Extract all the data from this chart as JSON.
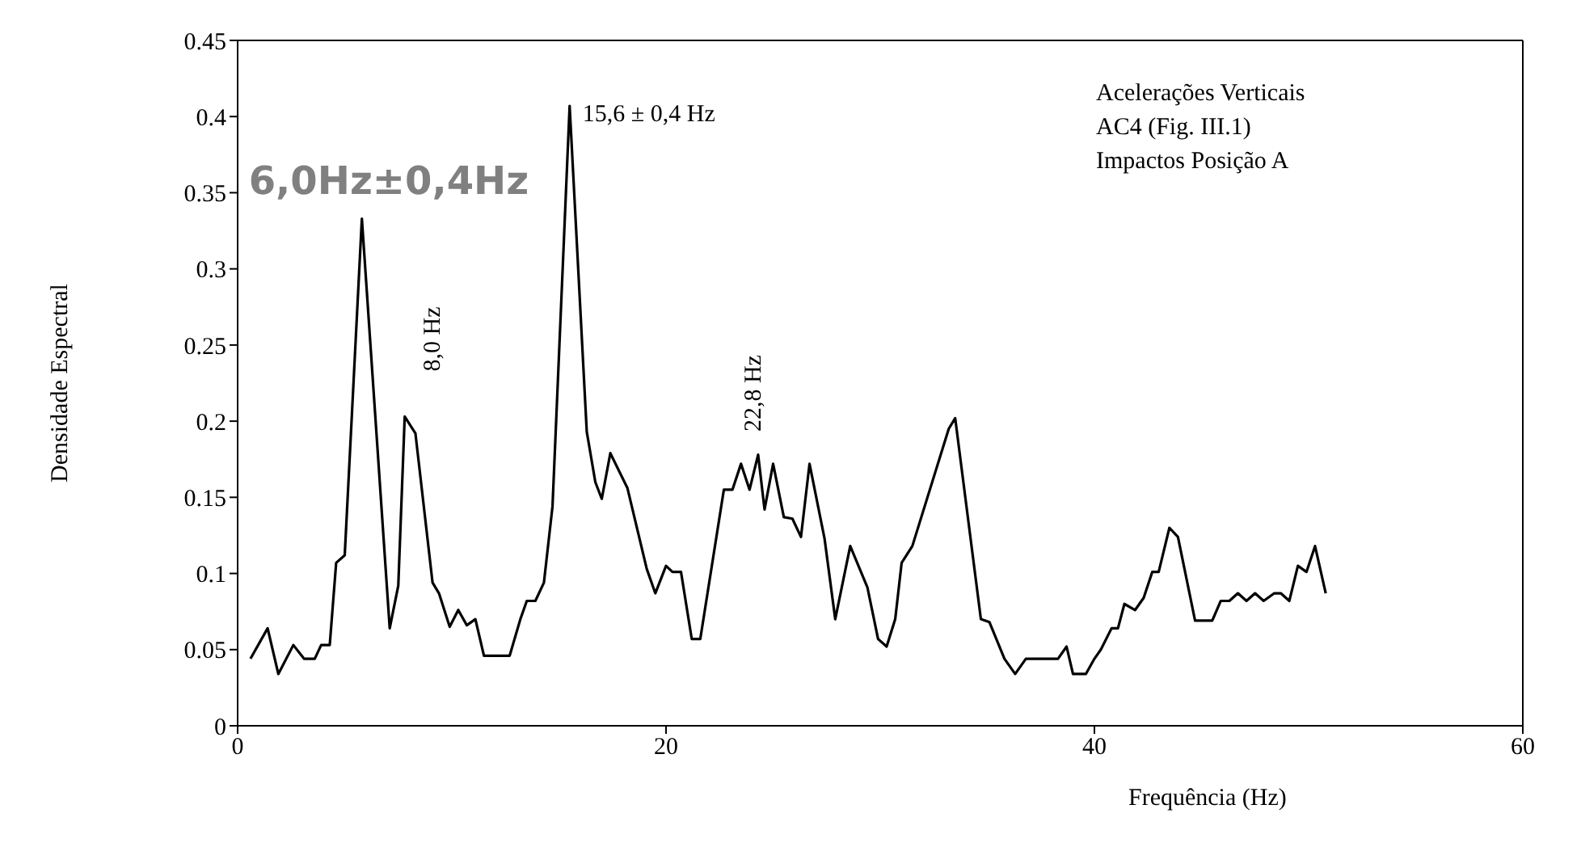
{
  "chart_data": {
    "type": "line",
    "xlabel": "Frequência (Hz)",
    "ylabel": "Densidade Espectral",
    "xlim": [
      0,
      60
    ],
    "xticks": [
      0,
      20,
      40,
      60
    ],
    "ylim": [
      0,
      0.45
    ],
    "yticks": [
      0,
      0.05,
      0.1,
      0.15,
      0.2,
      0.25,
      0.3,
      0.35,
      0.4,
      0.45
    ],
    "marker": "none",
    "line_style": "solid",
    "series": [
      {
        "color": "#000000",
        "x": [
          0.6,
          1.4,
          1.9,
          2.6,
          3.1,
          3.6,
          3.9,
          4.3,
          4.6,
          5.0,
          5.8,
          7.1,
          7.5,
          7.8,
          8.3,
          9.1,
          9.4,
          9.9,
          10.3,
          10.7,
          11.1,
          11.5,
          12.7,
          13.2,
          13.5,
          13.9,
          14.3,
          14.7,
          15.5,
          16.3,
          16.7,
          17.0,
          17.4,
          18.2,
          19.1,
          19.5,
          20.0,
          20.3,
          20.7,
          21.2,
          21.6,
          22.7,
          23.1,
          23.5,
          23.9,
          24.3,
          24.6,
          25.0,
          25.5,
          25.9,
          26.3,
          26.7,
          27.4,
          27.9,
          28.6,
          29.4,
          29.9,
          30.3,
          30.7,
          31.0,
          31.5,
          33.2,
          33.5,
          34.7,
          35.1,
          35.8,
          36.3,
          36.8,
          38.3,
          38.7,
          39.0,
          39.6,
          40.0,
          40.3,
          40.8,
          41.1,
          41.4,
          41.9,
          42.3,
          42.7,
          43.0,
          43.5,
          43.9,
          44.7,
          45.5,
          45.9,
          46.3,
          46.7,
          47.1,
          47.5,
          47.9,
          48.4,
          48.7,
          49.1,
          49.5,
          49.9,
          50.3,
          50.8
        ],
        "values": [
          0.044,
          0.064,
          0.034,
          0.053,
          0.044,
          0.044,
          0.053,
          0.053,
          0.107,
          0.112,
          0.333,
          0.064,
          0.092,
          0.203,
          0.192,
          0.094,
          0.087,
          0.065,
          0.076,
          0.066,
          0.07,
          0.046,
          0.046,
          0.07,
          0.082,
          0.082,
          0.094,
          0.144,
          0.407,
          0.193,
          0.16,
          0.149,
          0.179,
          0.156,
          0.103,
          0.087,
          0.105,
          0.101,
          0.101,
          0.057,
          0.057,
          0.155,
          0.155,
          0.172,
          0.155,
          0.178,
          0.142,
          0.172,
          0.137,
          0.136,
          0.124,
          0.172,
          0.123,
          0.07,
          0.118,
          0.091,
          0.057,
          0.052,
          0.07,
          0.107,
          0.118,
          0.195,
          0.202,
          0.07,
          0.068,
          0.044,
          0.034,
          0.044,
          0.044,
          0.052,
          0.034,
          0.034,
          0.044,
          0.05,
          0.064,
          0.064,
          0.08,
          0.076,
          0.084,
          0.101,
          0.101,
          0.13,
          0.124,
          0.069,
          0.069,
          0.082,
          0.082,
          0.087,
          0.082,
          0.087,
          0.082,
          0.087,
          0.087,
          0.082,
          0.105,
          0.101,
          0.118,
          0.087
        ]
      }
    ],
    "annotations": [
      {
        "text": "6,0Hz±0,4Hz",
        "x": 5.8,
        "y": 0.333
      },
      {
        "text": "8,0 Hz",
        "x": 7.8,
        "y": 0.203
      },
      {
        "text": "15,6 ± 0,4 Hz",
        "x": 15.5,
        "y": 0.407
      },
      {
        "text": "22,8 Hz",
        "x": 24.3,
        "y": 0.178
      },
      "Acelerações Verticais",
      "AC4 (Fig. III.1)",
      "Impactos Posição A"
    ]
  }
}
